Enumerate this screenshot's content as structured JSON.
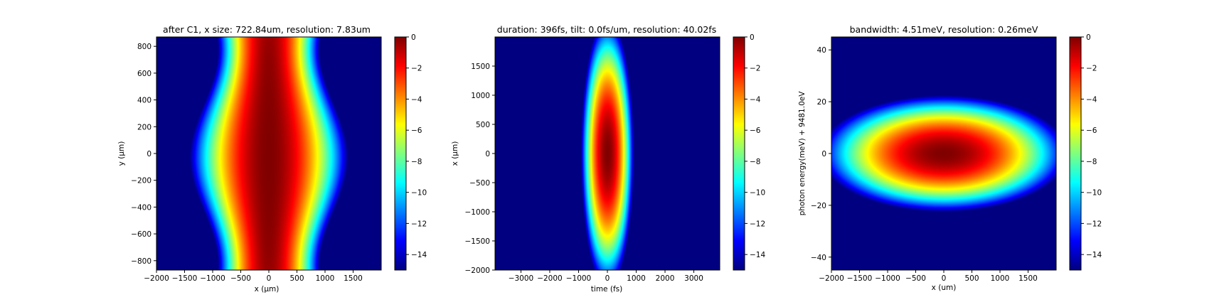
{
  "chart_data": [
    {
      "type": "heatmap",
      "title": "after C1, x size: 722.84um, resolution: 7.83um",
      "xlabel": "x (μm)",
      "ylabel": "y (μm)",
      "xlim": [
        -2000,
        2000
      ],
      "ylim": [
        -870,
        870
      ],
      "xticks": [
        -2000,
        -1500,
        -1000,
        -500,
        0,
        500,
        1000,
        1500
      ],
      "yticks": [
        -800,
        -600,
        -400,
        -200,
        0,
        200,
        400,
        600,
        800
      ],
      "colorbar": {
        "range": [
          -15,
          0
        ],
        "ticks": [
          0,
          -2,
          -4,
          -6,
          -8,
          -10,
          -12,
          -14
        ],
        "colormap": "jet"
      },
      "field": {
        "shape": "wavy-wide",
        "center": [
          0,
          -30
        ],
        "sigma_x": 520,
        "sigma_y": 2000,
        "wave_amp": 110,
        "wave_period": 1600,
        "peak": 0
      }
    },
    {
      "type": "heatmap",
      "title": "duration: 396fs, tilt: 0.0fs/um, resolution: 40.02fs",
      "xlabel": "time (fs)",
      "ylabel": "x (μm)",
      "xlim": [
        -3900,
        3900
      ],
      "ylim": [
        -2000,
        2000
      ],
      "xticks": [
        -3000,
        -2000,
        -1000,
        0,
        1000,
        2000,
        3000
      ],
      "yticks": [
        -2000,
        -1500,
        -1000,
        -500,
        0,
        500,
        1000,
        1500
      ],
      "colorbar": {
        "range": [
          -15,
          0
        ],
        "ticks": [
          0,
          -2,
          -4,
          -6,
          -8,
          -10,
          -12,
          -14
        ],
        "colormap": "jet"
      },
      "field": {
        "shape": "ellipse",
        "center": [
          0,
          0
        ],
        "sigma_x": 168,
        "sigma_y": 423,
        "peak": 0
      }
    },
    {
      "type": "heatmap",
      "title": "bandwidth: 4.51meV, resolution: 0.26meV",
      "xlabel": "x (um)",
      "ylabel": "photon energy(meV) + 9481.0eV",
      "xlim": [
        -2000,
        2000
      ],
      "ylim": [
        -45,
        45
      ],
      "xticks": [
        -2000,
        -1500,
        -1000,
        -500,
        0,
        500,
        1000,
        1500
      ],
      "yticks": [
        -40,
        -20,
        0,
        20,
        40
      ],
      "colorbar": {
        "range": [
          -15,
          0
        ],
        "ticks": [
          0,
          -2,
          -4,
          -6,
          -8,
          -10,
          -12,
          -14
        ],
        "colormap": "jet"
      },
      "field": {
        "shape": "ellipse",
        "center": [
          0,
          0
        ],
        "sigma_x": 404,
        "sigma_y": 4.1,
        "peak": 0
      }
    }
  ]
}
